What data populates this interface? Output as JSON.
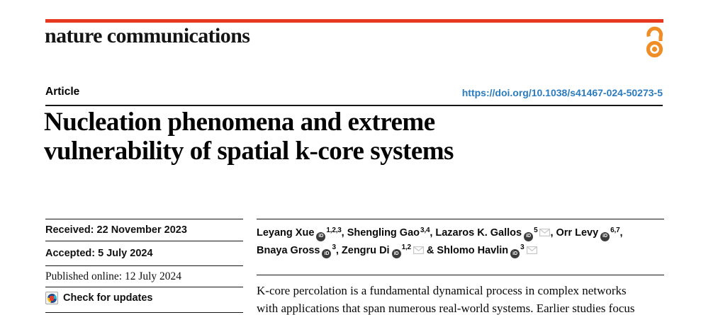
{
  "brand": {
    "journal_logo": "nature communications",
    "red_bar_color": "#e6391f",
    "open_access_color": "#f08d27"
  },
  "icons": {
    "open_access": "open-access-lock-icon",
    "orcid": "orcid-id-icon",
    "email": "envelope-icon",
    "check_updates": "crossmark-circle-icon"
  },
  "header": {
    "article_type": "Article",
    "doi_url": "https://doi.org/10.1038/s41467-024-50273-5",
    "doi_link_color": "#2b7bbf"
  },
  "title": {
    "line1": "Nucleation phenomena and extreme",
    "line2": "vulnerability of spatial k-core systems"
  },
  "history": {
    "received": "Received: 22 November 2023",
    "accepted": "Accepted: 5 July 2024",
    "published_online": "Published online: 12 July 2024",
    "check_for_updates": "Check for updates"
  },
  "authors": {
    "orcid_badge_text": "iD",
    "lines": [
      {
        "segments": [
          {
            "t": "name",
            "v": "Leyang Xue"
          },
          {
            "t": "orcid"
          },
          {
            "t": "sup",
            "v": "1,2,3"
          },
          {
            "t": "text",
            "v": ", "
          },
          {
            "t": "name",
            "v": "Shengling Gao"
          },
          {
            "t": "sup",
            "v": "3,4"
          },
          {
            "t": "text",
            "v": ", "
          },
          {
            "t": "name",
            "v": "Lazaros K. Gallos"
          },
          {
            "t": "orcid"
          },
          {
            "t": "sup",
            "v": "5"
          },
          {
            "t": "mail"
          },
          {
            "t": "text",
            "v": ", "
          },
          {
            "t": "name",
            "v": "Orr Levy"
          },
          {
            "t": "orcid"
          },
          {
            "t": "sup",
            "v": "6,7"
          },
          {
            "t": "text",
            "v": ","
          }
        ]
      },
      {
        "segments": [
          {
            "t": "name",
            "v": "Bnaya Gross"
          },
          {
            "t": "orcid"
          },
          {
            "t": "sup",
            "v": "3"
          },
          {
            "t": "text",
            "v": ", "
          },
          {
            "t": "name",
            "v": "Zengru Di"
          },
          {
            "t": "orcid"
          },
          {
            "t": "sup",
            "v": "1,2"
          },
          {
            "t": "mail"
          },
          {
            "t": "text",
            "v": " & "
          },
          {
            "t": "name",
            "v": "Shlomo Havlin"
          },
          {
            "t": "orcid"
          },
          {
            "t": "sup",
            "v": "3"
          },
          {
            "t": "mail"
          }
        ]
      }
    ]
  },
  "abstract": {
    "lines": [
      "K-core percolation is a fundamental dynamical process in complex networks",
      "with applications that span numerous real-world systems. Earlier studies focus"
    ]
  }
}
